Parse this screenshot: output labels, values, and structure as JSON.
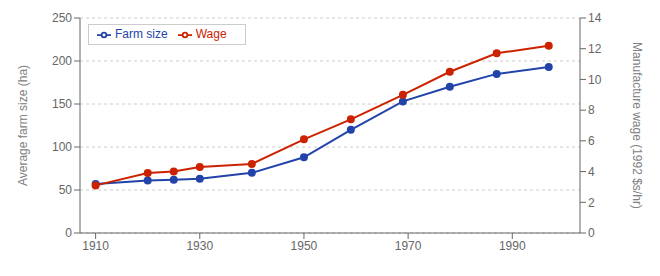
{
  "chart_data": {
    "type": "line",
    "x": [
      1910,
      1920,
      1925,
      1930,
      1940,
      1950,
      1959,
      1969,
      1978,
      1987,
      1997
    ],
    "series": [
      {
        "name": "Farm size",
        "color": "#2244aa",
        "marker": "circle",
        "values": [
          57,
          61,
          62,
          63,
          70,
          88,
          120,
          153,
          170,
          185,
          193
        ]
      },
      {
        "name": "Wage",
        "color": "#cc2200",
        "marker": "circle",
        "axis": "y2",
        "values": [
          3.1,
          3.9,
          4.0,
          4.3,
          4.5,
          6.1,
          7.4,
          9.0,
          10.5,
          11.7,
          12.2
        ]
      }
    ],
    "xlim": [
      1907,
      2003
    ],
    "xticks": [
      1910,
      1930,
      1950,
      1970,
      1990
    ],
    "ylim": [
      0,
      250
    ],
    "yticks": [
      0,
      50,
      100,
      150,
      200,
      250
    ],
    "y2lim": [
      0,
      14
    ],
    "y2ticks": [
      0,
      2,
      4,
      6,
      8,
      10,
      12,
      14
    ],
    "ylabel": "Average farm size (ha)",
    "y2label": "Manufacture wage (1992 $s/hr)",
    "grid": "y",
    "legend": "upper left"
  }
}
